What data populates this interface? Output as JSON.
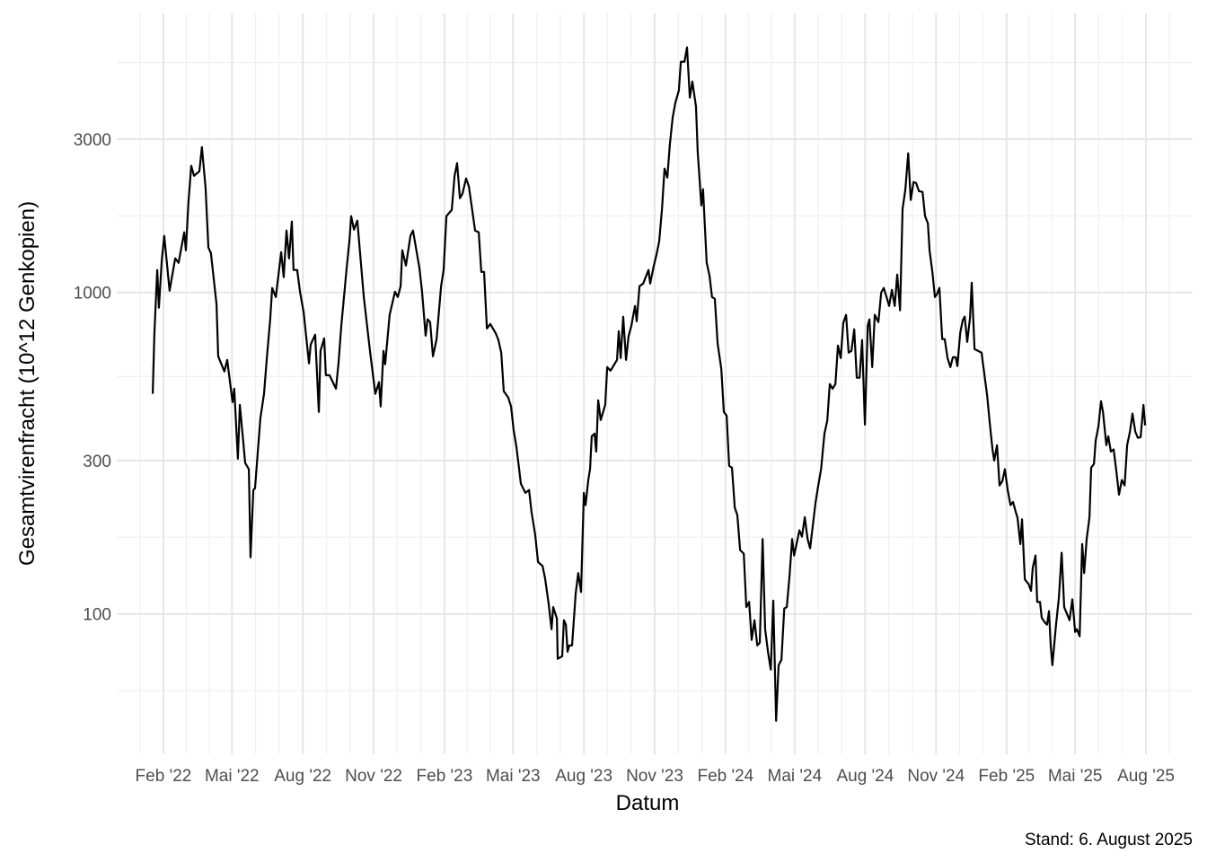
{
  "chart_data": {
    "type": "line",
    "x_label": "Datum",
    "y_label": "Gesamtvirenfracht (10^12 Genkopien)",
    "caption": "Stand: 6. August 2025",
    "color": "#000000",
    "log_y": true,
    "grid": true,
    "xlim": [
      2021.919,
      2025.747
    ],
    "ylim": [
      36.6,
      7380
    ],
    "xticks": [
      {
        "value": 2022.085,
        "label": "Feb '22"
      },
      {
        "value": 2022.329,
        "label": "Mai '22"
      },
      {
        "value": 2022.581,
        "label": "Aug '22"
      },
      {
        "value": 2022.833,
        "label": "Nov '22"
      },
      {
        "value": 2023.085,
        "label": "Feb '23"
      },
      {
        "value": 2023.329,
        "label": "Mai '23"
      },
      {
        "value": 2023.581,
        "label": "Aug '23"
      },
      {
        "value": 2023.833,
        "label": "Nov '23"
      },
      {
        "value": 2024.085,
        "label": "Feb '24"
      },
      {
        "value": 2024.331,
        "label": "Mai '24"
      },
      {
        "value": 2024.582,
        "label": "Aug '24"
      },
      {
        "value": 2024.834,
        "label": "Nov '24"
      },
      {
        "value": 2025.085,
        "label": "Feb '25"
      },
      {
        "value": 2025.329,
        "label": "Mai '25"
      },
      {
        "value": 2025.581,
        "label": "Aug '25"
      }
    ],
    "yticks": [
      100,
      300,
      1000,
      3000
    ],
    "x": [
      2022.047,
      2022.053,
      2022.063,
      2022.069,
      2022.079,
      2022.088,
      2022.107,
      2022.127,
      2022.139,
      2022.159,
      2022.165,
      2022.174,
      2022.184,
      2022.194,
      2022.213,
      2022.222,
      2022.235,
      2022.245,
      2022.254,
      2022.274,
      2022.28,
      2022.302,
      2022.312,
      2022.331,
      2022.337,
      2022.35,
      2022.357,
      2022.376,
      2022.389,
      2022.395,
      2022.405,
      2022.411,
      2022.43,
      2022.443,
      2022.453,
      2022.465,
      2022.472,
      2022.485,
      2022.504,
      2022.513,
      2022.523,
      2022.532,
      2022.542,
      2022.548,
      2022.561,
      2022.571,
      2022.584,
      2022.603,
      2022.609,
      2022.625,
      2022.638,
      2022.644,
      2022.657,
      2022.663,
      2022.676,
      2022.699,
      2022.708,
      2022.718,
      2022.737,
      2022.747,
      2022.753,
      2022.763,
      2022.775,
      2022.798,
      2022.82,
      2022.839,
      2022.852,
      2022.858,
      2022.868,
      2022.874,
      2022.89,
      2022.909,
      2022.919,
      2022.929,
      2022.935,
      2022.948,
      2022.964,
      2022.973,
      2022.996,
      2023.005,
      2023.018,
      2023.025,
      2023.034,
      2023.044,
      2023.057,
      2023.073,
      2023.082,
      2023.092,
      2023.111,
      2023.121,
      2023.13,
      2023.14,
      2023.149,
      2023.162,
      2023.172,
      2023.194,
      2023.207,
      2023.216,
      2023.226,
      2023.236,
      2023.248,
      2023.267,
      2023.277,
      2023.287,
      2023.296,
      2023.312,
      2023.322,
      2023.331,
      2023.341,
      2023.347,
      2023.357,
      2023.363,
      2023.373,
      2023.386,
      2023.395,
      2023.408,
      2023.418,
      2023.434,
      2023.443,
      2023.456,
      2023.466,
      2023.472,
      2023.485,
      2023.488,
      2023.504,
      2023.51,
      2023.517,
      2023.523,
      2023.529,
      2023.539,
      2023.552,
      2023.561,
      2023.571,
      2023.577,
      2023.581,
      2023.587,
      2023.597,
      2023.603,
      2023.609,
      2023.619,
      2023.625,
      2023.632,
      2023.641,
      2023.657,
      2023.664,
      2023.676,
      2023.699,
      2023.705,
      2023.712,
      2023.721,
      2023.731,
      2023.74,
      2023.75,
      2023.763,
      2023.769,
      2023.779,
      2023.792,
      2023.811,
      2023.817,
      2023.83,
      2023.84,
      2023.849,
      2023.859,
      2023.868,
      2023.878,
      2023.887,
      2023.897,
      2023.907,
      2023.919,
      2023.926,
      2023.939,
      2023.948,
      2023.958,
      2023.967,
      2023.98,
      2023.986,
      2023.999,
      2024.005,
      2024.018,
      2024.028,
      2024.037,
      2024.047,
      2024.057,
      2024.07,
      2024.079,
      2024.089,
      2024.098,
      2024.108,
      2024.118,
      2024.127,
      2024.137,
      2024.15,
      2024.159,
      2024.169,
      2024.178,
      2024.188,
      2024.198,
      2024.207,
      2024.217,
      2024.226,
      2024.236,
      2024.246,
      2024.255,
      2024.265,
      2024.274,
      2024.284,
      2024.294,
      2024.303,
      2024.313,
      2024.322,
      2024.329,
      2024.348,
      2024.357,
      2024.367,
      2024.377,
      2024.386,
      2024.405,
      2024.415,
      2024.425,
      2024.437,
      2024.447,
      2024.456,
      2024.466,
      2024.476,
      2024.485,
      2024.495,
      2024.504,
      2024.514,
      2024.523,
      2024.533,
      2024.543,
      2024.552,
      2024.562,
      2024.571,
      2024.581,
      2024.591,
      2024.597,
      2024.607,
      2024.616,
      2024.629,
      2024.639,
      2024.648,
      2024.658,
      2024.667,
      2024.677,
      2024.687,
      2024.696,
      2024.706,
      2024.715,
      2024.725,
      2024.735,
      2024.744,
      2024.754,
      2024.763,
      2024.773,
      2024.786,
      2024.795,
      2024.805,
      2024.811,
      2024.821,
      2024.83,
      2024.837,
      2024.846,
      2024.856,
      2024.865,
      2024.875,
      2024.885,
      2024.894,
      2024.904,
      2024.91,
      2024.92,
      2024.929,
      2024.936,
      2024.945,
      2024.955,
      2024.961,
      2024.971,
      2024.996,
      2025.016,
      2025.025,
      2025.035,
      2025.041,
      2025.051,
      2025.06,
      2025.07,
      2025.079,
      2025.089,
      2025.099,
      2025.108,
      2025.118,
      2025.124,
      2025.134,
      2025.14,
      2025.15,
      2025.163,
      2025.172,
      2025.178,
      2025.188,
      2025.194,
      2025.204,
      2025.21,
      2025.22,
      2025.229,
      2025.236,
      2025.242,
      2025.248,
      2025.261,
      2025.271,
      2025.281,
      2025.29,
      2025.3,
      2025.309,
      2025.319,
      2025.329,
      2025.335,
      2025.345,
      2025.354,
      2025.361,
      2025.37,
      2025.38,
      2025.386,
      2025.396,
      2025.402,
      2025.412,
      2025.421,
      2025.428,
      2025.44,
      2025.447,
      2025.456,
      2025.466,
      2025.476,
      2025.485,
      2025.495,
      2025.505,
      2025.514,
      2025.524,
      2025.533,
      2025.543,
      2025.552,
      2025.562,
      2025.572,
      2025.578
    ],
    "values": [
      484,
      748,
      1175,
      897,
      1253,
      1500,
      1013,
      1277,
      1237,
      1539,
      1353,
      1902,
      2477,
      2307,
      2383,
      2834,
      2122,
      1380,
      1327,
      920,
      633,
      568,
      617,
      456,
      502,
      304,
      447,
      295,
      282,
      150,
      243,
      246,
      406,
      484,
      625,
      825,
      1033,
      968,
      1335,
      1116,
      1559,
      1277,
      1662,
      1175,
      1175,
      1006,
      868,
      602,
      689,
      739,
      425,
      658,
      720,
      553,
      553,
      502,
      602,
      788,
      1190,
      1452,
      1728,
      1569,
      1673,
      968,
      658,
      484,
      526,
      442,
      658,
      598,
      852,
      1006,
      968,
      1046,
      1353,
      1213,
      1500,
      1559,
      1190,
      1013,
      734,
      825,
      809,
      633,
      716,
      1046,
      1175,
      1728,
      1807,
      2307,
      2525,
      1965,
      2029,
      2263,
      2136,
      1559,
      1539,
      1159,
      1159,
      773,
      798,
      748,
      711,
      650,
      493,
      471,
      442,
      374,
      331,
      300,
      254,
      248,
      238,
      243,
      207,
      176,
      145,
      141,
      129,
      107,
      89.6,
      105,
      96.8,
      72.5,
      73.9,
      95.6,
      92.6,
      76.3,
      79.8,
      79.8,
      116,
      134,
      117,
      180,
      238,
      218,
      262,
      282,
      357,
      364,
      320,
      462,
      401,
      447,
      586,
      571,
      617,
      758,
      625,
      841,
      617,
      730,
      788,
      908,
      814,
      1046,
      1066,
      1175,
      1066,
      1213,
      1319,
      1443,
      1819,
      2429,
      2278,
      2890,
      3505,
      3910,
      4251,
      5223,
      5223,
      5790,
      4038,
      4533,
      3786,
      2745,
      1866,
      2096,
      1237,
      1130,
      968,
      956,
      693,
      579,
      425,
      414,
      289,
      285,
      214,
      203,
      158,
      154,
      105,
      109,
      83.0,
      95.6,
      79.8,
      81.4,
      171,
      89.6,
      76.3,
      67.1,
      110,
      46.5,
      69.3,
      72.0,
      104,
      105,
      132,
      171,
      152,
      182,
      174,
      200,
      171,
      160,
      221,
      251,
      282,
      364,
      399,
      519,
      502,
      519,
      684,
      625,
      804,
      852,
      650,
      658,
      768,
      543,
      543,
      711,
      388,
      788,
      825,
      586,
      852,
      809,
      1000,
      1033,
      968,
      908,
      1019,
      908,
      1137,
      880,
      1819,
      2096,
      2710,
      1940,
      2206,
      2192,
      2068,
      2055,
      1728,
      1641,
      1353,
      1159,
      968,
      987,
      1033,
      716,
      716,
      625,
      586,
      629,
      629,
      590,
      748,
      819,
      841,
      702,
      835,
      1073,
      667,
      650,
      477,
      394,
      325,
      300,
      335,
      251,
      259,
      282,
      243,
      218,
      223,
      207,
      199,
      165,
      197,
      128,
      124,
      118,
      139,
      152,
      109,
      109,
      97.4,
      94.4,
      92.6,
      102,
      79.8,
      69.3,
      92.6,
      112,
      155,
      105,
      100,
      95.6,
      111,
      87.9,
      89.6,
      85.2,
      165,
      134,
      171,
      200,
      285,
      293,
      346,
      384,
      459,
      425,
      335,
      357,
      320,
      325,
      276,
      235,
      261,
      251,
      335,
      369,
      420,
      369,
      353,
      355,
      447,
      386
    ]
  }
}
